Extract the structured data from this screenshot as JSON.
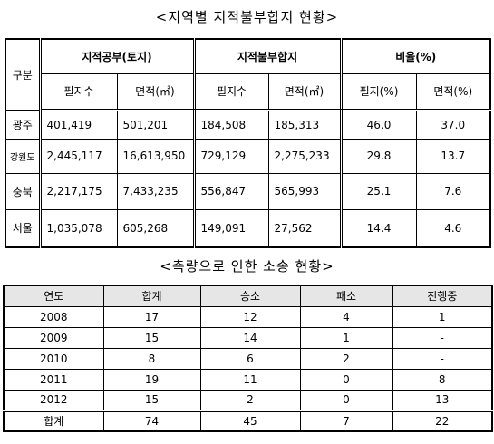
{
  "table1": {
    "title": "<지역별 지적불부합지 현황>",
    "corner": "구분",
    "groups": [
      "지적공부(토지)",
      "지적불부합지",
      "비율(%)"
    ],
    "subheaders": [
      "필지수",
      "면적(㎡)",
      "필지수",
      "면적(㎡)",
      "필지(%)",
      "면적(%)"
    ],
    "rows": [
      [
        "광주",
        "401,419",
        "501,201",
        "184,508",
        "185,313",
        "46.0",
        "37.0"
      ],
      [
        "강원도",
        "2,445,117",
        "16,613,950",
        "729,129",
        "2,275,233",
        "29.8",
        "13.7"
      ],
      [
        "충북",
        "2,217,175",
        "7,433,235",
        "556,847",
        "565,993",
        "25.1",
        "7.6"
      ],
      [
        "서울",
        "1,035,078",
        "605,268",
        "149,091",
        "27,562",
        "14.4",
        "4.6"
      ]
    ]
  },
  "table2": {
    "title": "<측량으로 인한 소송 현황>",
    "header": [
      "연도",
      "합계",
      "승소",
      "패소",
      "진행중"
    ],
    "rows": [
      [
        "2008",
        "17",
        "12",
        "4",
        "1"
      ],
      [
        "2009",
        "15",
        "14",
        "1",
        "-"
      ],
      [
        "2010",
        "8",
        "6",
        "2",
        "-"
      ],
      [
        "2011",
        "19",
        "11",
        "0",
        "8"
      ],
      [
        "2012",
        "15",
        "2",
        "0",
        "13"
      ],
      [
        "합계",
        "74",
        "45",
        "7",
        "22"
      ]
    ]
  }
}
